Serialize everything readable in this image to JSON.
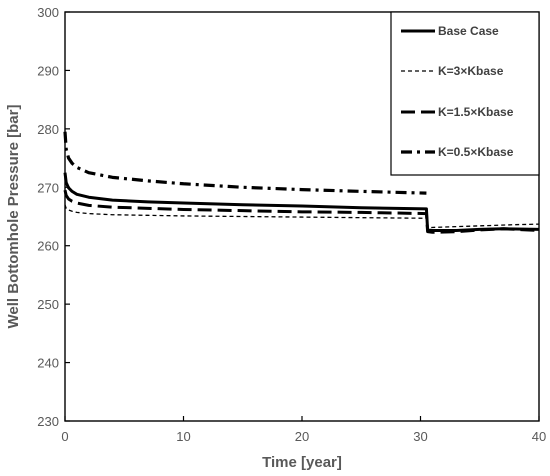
{
  "chart_data": {
    "type": "line",
    "title": "",
    "xlabel": "Time [year]",
    "ylabel": "Well Bottomhole Pressure [bar]",
    "xlim": [
      0,
      40
    ],
    "ylim": [
      230,
      300
    ],
    "xticks": [
      0,
      10,
      20,
      30,
      40
    ],
    "yticks": [
      230,
      240,
      250,
      260,
      270,
      280,
      290,
      300
    ],
    "grid": false,
    "legend_position": "top-right",
    "series": [
      {
        "name": "Base Case",
        "style": "solid",
        "x": [
          0,
          0.1,
          0.3,
          0.6,
          1,
          2,
          4,
          7,
          10,
          15,
          20,
          25,
          30.5,
          30.6,
          31,
          33,
          35,
          37,
          40
        ],
        "y": [
          272.5,
          270.8,
          269.9,
          269.3,
          268.8,
          268.3,
          267.8,
          267.5,
          267.3,
          267.0,
          266.8,
          266.5,
          266.3,
          262.7,
          262.6,
          262.6,
          262.8,
          262.9,
          262.8
        ]
      },
      {
        "name": "K=3×Kbase",
        "style": "dashed-fine",
        "x": [
          0,
          0.1,
          0.3,
          0.6,
          1,
          2,
          4,
          7,
          10,
          15,
          20,
          25,
          30.5,
          30.6,
          32,
          35,
          38,
          40
        ],
        "y": [
          267.0,
          266.4,
          266.1,
          265.9,
          265.7,
          265.5,
          265.3,
          265.2,
          265.1,
          265.0,
          264.9,
          264.8,
          264.7,
          263.1,
          263.2,
          263.4,
          263.6,
          263.7
        ]
      },
      {
        "name": "K=1.5×Kbase",
        "style": "long-dash",
        "x": [
          0,
          0.1,
          0.3,
          0.6,
          1,
          2,
          4,
          7,
          10,
          15,
          20,
          25,
          30.5,
          30.6,
          31,
          33,
          35,
          37,
          40
        ],
        "y": [
          269.5,
          268.6,
          268.0,
          267.6,
          267.3,
          266.9,
          266.6,
          266.4,
          266.2,
          266.0,
          265.8,
          265.7,
          265.5,
          262.4,
          262.3,
          262.4,
          262.7,
          262.9,
          262.6
        ]
      },
      {
        "name": "K=0.5×Kbase",
        "style": "dash-dot",
        "x": [
          0,
          0.1,
          0.3,
          0.6,
          1,
          2,
          4,
          7,
          10,
          15,
          20,
          25,
          30.5
        ],
        "y": [
          279.5,
          276.5,
          275.0,
          274.1,
          273.4,
          272.5,
          271.7,
          271.1,
          270.6,
          270.0,
          269.6,
          269.3,
          269.0
        ]
      }
    ]
  }
}
